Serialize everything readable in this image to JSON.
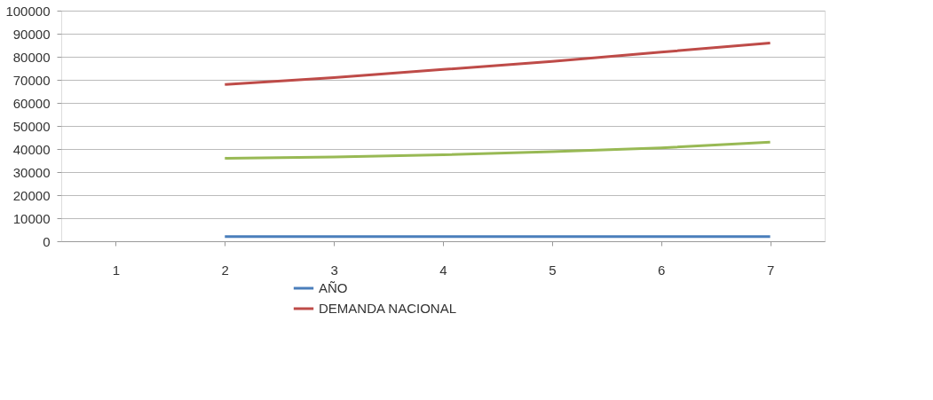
{
  "chart_data": {
    "type": "line",
    "categories": [
      "1",
      "2",
      "3",
      "4",
      "5",
      "6",
      "7"
    ],
    "series": [
      {
        "name": "AÑO",
        "color": "#4a7ebb",
        "values": [
          null,
          2000,
          2000,
          2000,
          2000,
          2000,
          2000
        ]
      },
      {
        "name": "DEMANDA NACIONAL",
        "color": "#be4b48",
        "values": [
          null,
          68000,
          71000,
          74500,
          78000,
          82000,
          86000
        ]
      },
      {
        "color": "#98b954",
        "values": [
          null,
          36000,
          36500,
          37500,
          38800,
          40500,
          43000
        ]
      }
    ],
    "ylim": [
      0,
      100000
    ],
    "yticks": [
      0,
      10000,
      20000,
      30000,
      40000,
      50000,
      60000,
      70000,
      80000,
      90000,
      100000
    ],
    "grid": "y",
    "legend": "bottom",
    "marker": "none",
    "line_style": "solid"
  }
}
